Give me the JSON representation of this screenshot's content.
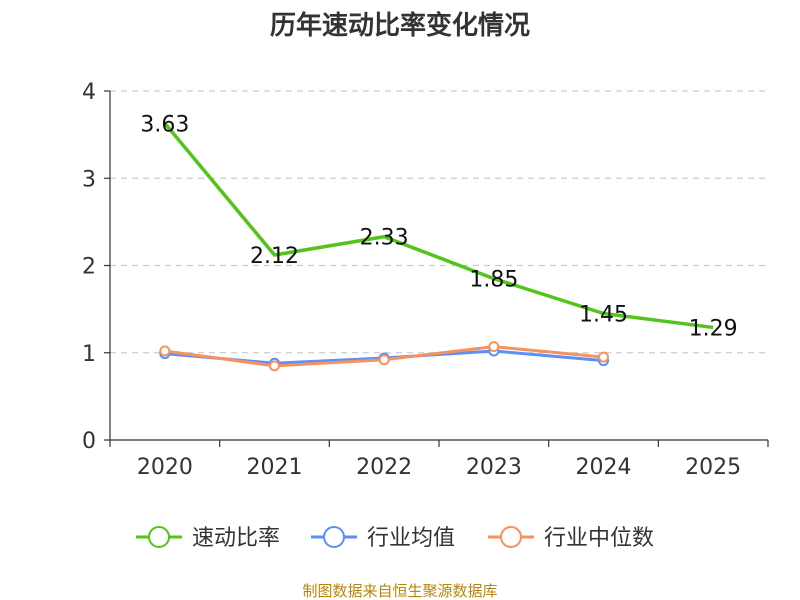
{
  "chart_data": {
    "type": "line",
    "title": "历年速动比率变化情况",
    "categories": [
      "2020",
      "2021",
      "2022",
      "2023",
      "2024",
      "2025"
    ],
    "ylim": [
      0,
      4
    ],
    "yticks": [
      "0",
      "1",
      "2",
      "3",
      "4"
    ],
    "grid": true,
    "legend_position": "bottom",
    "series": [
      {
        "name": "速动比率",
        "color": "#52c41a",
        "values": [
          3.63,
          2.12,
          2.33,
          1.85,
          1.45,
          1.29
        ],
        "labels": [
          "3.63",
          "2.12",
          "2.33",
          "1.85",
          "1.45",
          "1.29"
        ]
      },
      {
        "name": "行业均值",
        "color": "#5b8ff9",
        "values": [
          0.99,
          0.88,
          0.94,
          1.02,
          0.91,
          null
        ]
      },
      {
        "name": "行业中位数",
        "color": "#f6925d",
        "values": [
          1.02,
          0.85,
          0.92,
          1.07,
          0.95,
          null
        ]
      }
    ],
    "source": "制图数据来自恒生聚源数据库"
  }
}
